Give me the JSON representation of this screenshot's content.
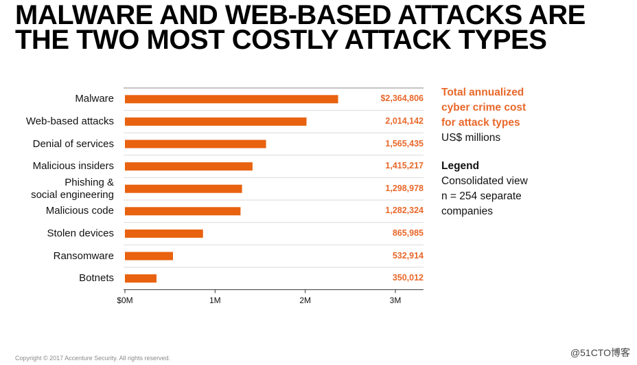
{
  "title": {
    "line1": "MALWARE AND WEB-BASED ATTACKS ARE",
    "line2": "THE TWO MOST COSTLY ATTACK TYPES"
  },
  "side_panel": {
    "heading_lines": [
      "Total annualized",
      "cyber crime cost",
      "for attack types"
    ],
    "unit": "US$ millions",
    "legend_heading": "Legend",
    "legend_lines": [
      "Consolidated view",
      "n = 254 separate",
      "companies"
    ]
  },
  "footer": "Copyright © 2017 Accenture Security. All rights reserved.",
  "watermark": "@51CTO博客",
  "colors": {
    "bar": "#e8620f",
    "value_text": "#e8682a",
    "grid": "#d9d9d9"
  },
  "chart_data": {
    "type": "bar",
    "orientation": "horizontal",
    "categories": [
      "Malware",
      "Web-based attacks",
      "Denial of services",
      "Malicious insiders",
      "Phishing &\nsocial engineering",
      "Malicious code",
      "Stolen devices",
      "Ransomware",
      "Botnets"
    ],
    "values": [
      2364806,
      2014142,
      1565435,
      1415217,
      1298978,
      1282324,
      865985,
      532914,
      350012
    ],
    "value_labels": [
      "$2,364,806",
      "2,014,142",
      "1,565,435",
      "1,415,217",
      "1,298,978",
      "1,282,324",
      "865,985",
      "532,914",
      "350,012"
    ],
    "x_ticks": [
      0,
      1000000,
      2000000,
      3000000
    ],
    "x_tick_labels": [
      "$0M",
      "1M",
      "2M",
      "3M"
    ],
    "xlim": [
      0,
      3300000
    ],
    "grid": "horizontal separators"
  }
}
